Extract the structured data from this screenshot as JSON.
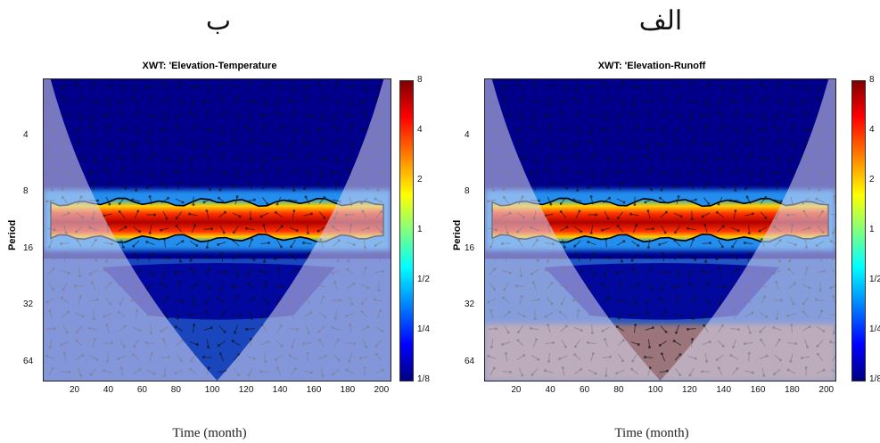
{
  "panels": [
    {
      "tag": "ب",
      "title": "XWT: 'Elevation-Temperature",
      "ylabel": "Period",
      "xlabel": "Time (month)"
    },
    {
      "tag": "الف",
      "title": "XWT: 'Elevation-Runoff",
      "ylabel": "Period",
      "xlabel": "Time (month)"
    }
  ],
  "colors": {
    "background_power": "#00008a",
    "cone_shade": "#a0a0c8",
    "ridge_core": "#c00000"
  },
  "chart_data": [
    {
      "type": "heatmap",
      "title": "XWT: 'Elevation-Temperature",
      "xlabel": "Time (month)",
      "ylabel": "Period",
      "x_ticks": [
        20,
        40,
        60,
        80,
        100,
        120,
        140,
        160,
        180,
        200
      ],
      "y_ticks": [
        "4",
        "8",
        "16",
        "32",
        "64"
      ],
      "y_scale": "log2",
      "xlim": [
        0,
        205
      ],
      "ylim": [
        2,
        80
      ],
      "colorbar_ticks": [
        "8",
        "4",
        "2",
        "1",
        "1/2",
        "1/4",
        "1/8"
      ],
      "significant_band_period": [
        9,
        14
      ]
    },
    {
      "type": "heatmap",
      "title": "XWT: 'Elevation-Runoff",
      "xlabel": "Time (month)",
      "ylabel": "Period",
      "x_ticks": [
        20,
        40,
        60,
        80,
        100,
        120,
        140,
        160,
        180,
        200
      ],
      "y_ticks": [
        "4",
        "8",
        "16",
        "32",
        "64"
      ],
      "y_scale": "log2",
      "xlim": [
        0,
        205
      ],
      "ylim": [
        2,
        80
      ],
      "colorbar_ticks": [
        "8",
        "4",
        "2",
        "1",
        "1/2",
        "1/4",
        "1/8"
      ],
      "significant_band_period": [
        9,
        14
      ]
    }
  ]
}
